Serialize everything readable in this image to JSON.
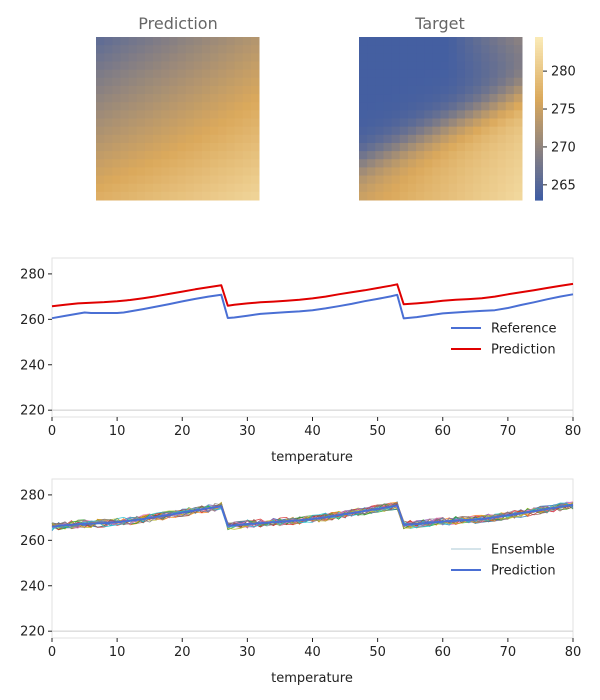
{
  "chart_data": [
    {
      "type": "heatmap",
      "title": "Prediction",
      "grid_size": 20,
      "field": {
        "low_corner": "top-left",
        "base": 268.5,
        "diag_gain": 9.0,
        "vertical_gain": 4.0,
        "max": 284
      },
      "colormap": {
        "type": "blue-tan-cream",
        "stops": [
          "#3e5ca4",
          "#dba95c",
          "#fbebb8"
        ]
      }
    },
    {
      "type": "heatmap",
      "title": "Target",
      "grid_size": 20,
      "field": {
        "low_corner": "top-left",
        "boundary": "diagonal",
        "low": 263.5,
        "high_base": 271.0,
        "high_max": 283.0
      },
      "colorbar": {
        "range": [
          263,
          284.5
        ],
        "ticks": [
          265,
          270,
          275,
          280
        ]
      },
      "colormap": {
        "type": "blue-tan-cream",
        "stops": [
          "#3e5ca4",
          "#dba95c",
          "#fbebb8"
        ]
      }
    },
    {
      "type": "line",
      "xlabel": "temperature",
      "xlim": [
        0,
        80
      ],
      "ylim": [
        217,
        287
      ],
      "xticks": [
        0,
        10,
        20,
        30,
        40,
        50,
        60,
        70,
        80
      ],
      "yticks": [
        220,
        240,
        260,
        280
      ],
      "legend": "right",
      "series": [
        {
          "name": "Reference",
          "color": "#4a6fd4",
          "x": [
            0,
            2,
            4,
            5,
            6,
            8,
            10,
            11,
            12,
            14,
            16,
            18,
            20,
            22,
            24,
            26,
            27,
            28,
            30,
            32,
            34,
            36,
            38,
            40,
            42,
            44,
            46,
            48,
            50,
            52,
            53,
            54,
            56,
            58,
            60,
            62,
            64,
            66,
            68,
            70,
            72,
            74,
            76,
            78,
            80
          ],
          "y": [
            260.5,
            261.5,
            262.5,
            263,
            262.8,
            262.8,
            262.8,
            263,
            263.5,
            264.5,
            265.6,
            266.7,
            267.9,
            269,
            270,
            270.8,
            260.6,
            260.8,
            261.6,
            262.4,
            262.8,
            263.2,
            263.5,
            264,
            264.8,
            265.8,
            266.8,
            268,
            269,
            270.1,
            270.8,
            260.4,
            261,
            261.8,
            262.6,
            263,
            263.4,
            263.7,
            264,
            265,
            266.3,
            267.5,
            268.8,
            270,
            271
          ]
        },
        {
          "name": "Prediction",
          "color": "#e00000",
          "x": [
            0,
            2,
            4,
            6,
            8,
            10,
            12,
            14,
            16,
            18,
            20,
            22,
            24,
            26,
            27,
            28,
            30,
            32,
            34,
            36,
            38,
            40,
            42,
            44,
            46,
            48,
            50,
            52,
            53,
            54,
            56,
            58,
            60,
            62,
            64,
            66,
            68,
            70,
            72,
            74,
            76,
            78,
            80
          ],
          "y": [
            265.8,
            266.4,
            267,
            267.3,
            267.6,
            268,
            268.5,
            269.3,
            270.2,
            271.2,
            272.2,
            273.2,
            274.1,
            275,
            266,
            266.4,
            267,
            267.5,
            267.8,
            268.2,
            268.6,
            269.2,
            270,
            271,
            271.9,
            272.8,
            273.8,
            274.8,
            275.4,
            266.6,
            267,
            267.5,
            268.2,
            268.6,
            268.9,
            269.3,
            270,
            271,
            271.9,
            272.8,
            273.8,
            274.7,
            275.6
          ]
        }
      ]
    },
    {
      "type": "line",
      "xlabel": "temperature",
      "xlim": [
        0,
        80
      ],
      "ylim": [
        217,
        287
      ],
      "xticks": [
        0,
        10,
        20,
        30,
        40,
        50,
        60,
        70,
        80
      ],
      "yticks": [
        220,
        240,
        260,
        280
      ],
      "legend": "right",
      "ensemble": {
        "name": "Ensemble",
        "members": 20,
        "spread": 1.8,
        "palette": [
          "#1f77b4",
          "#ff7f0e",
          "#2ca02c",
          "#d62728",
          "#9467bd",
          "#8c564b",
          "#e377c2",
          "#bcbd22",
          "#17becf",
          "#7f7f7f"
        ]
      },
      "series": [
        {
          "name": "Prediction",
          "color": "#4a6fd4",
          "x": [
            0,
            2,
            4,
            6,
            8,
            10,
            12,
            14,
            16,
            18,
            20,
            22,
            24,
            26,
            27,
            28,
            30,
            32,
            34,
            36,
            38,
            40,
            42,
            44,
            46,
            48,
            50,
            52,
            53,
            54,
            56,
            58,
            60,
            62,
            64,
            66,
            68,
            70,
            72,
            74,
            76,
            78,
            80
          ],
          "y": [
            266,
            266.6,
            267.1,
            267.4,
            267.6,
            268,
            268.6,
            269.4,
            270.3,
            271.2,
            272.2,
            273.2,
            274.1,
            275,
            266.4,
            266.6,
            267.2,
            267.6,
            268,
            268.4,
            268.8,
            269.4,
            270.2,
            271.1,
            272,
            272.9,
            273.9,
            274.8,
            275.4,
            266.8,
            267.2,
            267.7,
            268.3,
            268.7,
            269,
            269.4,
            270.1,
            271,
            271.9,
            272.8,
            273.8,
            274.7,
            275.6
          ]
        }
      ]
    }
  ]
}
